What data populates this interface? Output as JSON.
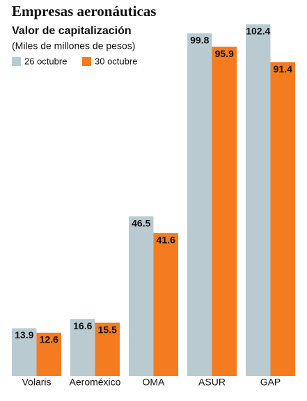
{
  "chart_data": {
    "type": "bar",
    "title": "Empresas aeronáuticas",
    "subtitle": "Valor de capitalización",
    "unit_note": "(Miles de millones de pesos)",
    "categories": [
      "Volaris",
      "Aeroméxico",
      "OMA",
      "ASUR",
      "GAP"
    ],
    "series": [
      {
        "name": "26 octubre",
        "color": "#b9cbd1",
        "values": [
          13.9,
          16.6,
          46.5,
          99.8,
          102.4
        ]
      },
      {
        "name": "30 octubre",
        "color": "#f47b20",
        "values": [
          12.6,
          15.5,
          41.6,
          95.9,
          91.4
        ]
      }
    ]
  }
}
